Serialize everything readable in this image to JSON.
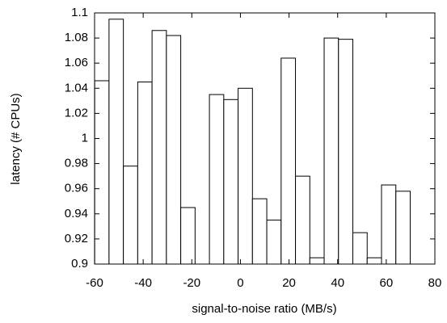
{
  "chart_data": {
    "type": "bar",
    "x_label": "signal-to-noise ratio (MB/s)",
    "y_label": "latency (# CPUs)",
    "x": [
      -57.0,
      -51.1,
      -45.2,
      -39.3,
      -33.4,
      -27.5,
      -21.6,
      -15.7,
      -9.8,
      -3.9,
      2.0,
      7.9,
      13.8,
      19.7,
      25.6,
      31.5,
      37.4,
      43.3,
      49.2,
      55.1,
      61.0,
      66.9
    ],
    "values": [
      1.046,
      1.095,
      0.978,
      1.045,
      1.086,
      1.082,
      0.945,
      null,
      1.035,
      1.031,
      1.04,
      0.952,
      0.935,
      1.064,
      0.97,
      0.905,
      1.08,
      1.079,
      0.925,
      0.905,
      0.963,
      0.958
    ],
    "color": "#ffffff",
    "xlim": [
      -60,
      80
    ],
    "xticks": [
      -60,
      -40,
      -20,
      0,
      20,
      40,
      60,
      80
    ],
    "ylim": [
      0.9,
      1.1
    ],
    "yticks": [
      0.9,
      0.92,
      0.94,
      0.96,
      0.98,
      1,
      1.02,
      1.04,
      1.06,
      1.08,
      1.1
    ],
    "grid": false
  }
}
